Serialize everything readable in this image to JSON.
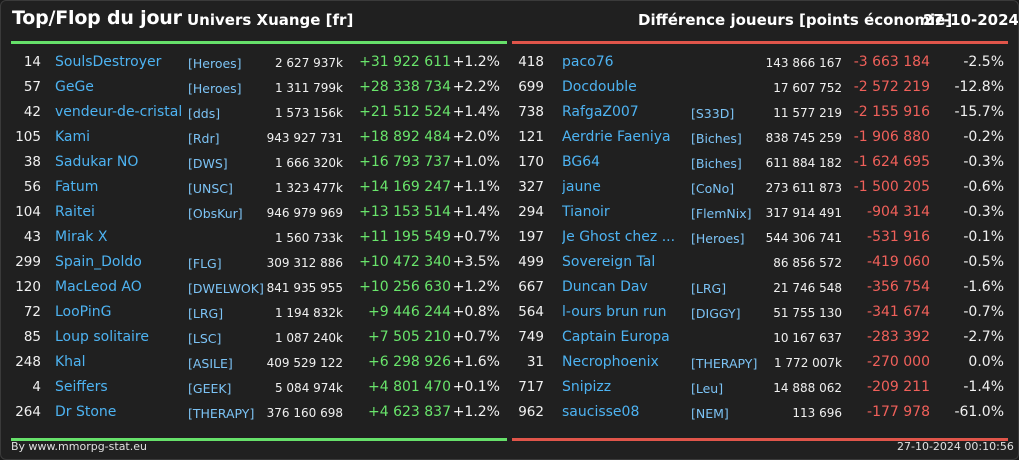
{
  "header": {
    "title": "Top/Flop du jour",
    "universe": "Univers Xuange [fr]",
    "metric": "Différence joueurs [points économie]",
    "date": "27-10-2024"
  },
  "colors": {
    "gain": "#69e56b",
    "loss": "#f0605a",
    "name": "#4db3f2",
    "top_border": "#66e06a",
    "flop_border": "#e0554a"
  },
  "top": [
    {
      "rank": "14",
      "name": "SoulsDestroyer",
      "guild": "[Heroes]",
      "total": "2 627 937k",
      "diff": "+31 922 611",
      "pct": "+1.2%"
    },
    {
      "rank": "57",
      "name": "GeGe",
      "guild": "[Heroes]",
      "total": "1 311 799k",
      "diff": "+28 338 734",
      "pct": "+2.2%"
    },
    {
      "rank": "42",
      "name": "vendeur-de-cristal",
      "guild": "[dds]",
      "total": "1 573 156k",
      "diff": "+21 512 524",
      "pct": "+1.4%"
    },
    {
      "rank": "105",
      "name": "Kami",
      "guild": "[Rdr]",
      "total": "943 927 731",
      "diff": "+18 892 484",
      "pct": "+2.0%"
    },
    {
      "rank": "38",
      "name": "Sadukar NO",
      "guild": "[DWS]",
      "total": "1 666 320k",
      "diff": "+16 793 737",
      "pct": "+1.0%"
    },
    {
      "rank": "56",
      "name": "Fatum",
      "guild": "[UNSC]",
      "total": "1 323 477k",
      "diff": "+14 169 247",
      "pct": "+1.1%"
    },
    {
      "rank": "104",
      "name": "Raitei",
      "guild": "[ObsKur]",
      "total": "946 979 969",
      "diff": "+13 153 514",
      "pct": "+1.4%"
    },
    {
      "rank": "43",
      "name": "Mirak X",
      "guild": "",
      "total": "1 560 733k",
      "diff": "+11 195 549",
      "pct": "+0.7%"
    },
    {
      "rank": "299",
      "name": "Spain_Doldo",
      "guild": "[FLG]",
      "total": "309 312 886",
      "diff": "+10 472 340",
      "pct": "+3.5%"
    },
    {
      "rank": "120",
      "name": "MacLeod AO",
      "guild": "[DWELWOK]",
      "total": "841 935 955",
      "diff": "+10 256 630",
      "pct": "+1.2%"
    },
    {
      "rank": "72",
      "name": "LooPinG",
      "guild": "[LRG]",
      "total": "1 194 832k",
      "diff": "+9 446 244",
      "pct": "+0.8%"
    },
    {
      "rank": "85",
      "name": "Loup solitaire",
      "guild": "[LSC]",
      "total": "1 087 240k",
      "diff": "+7 505 210",
      "pct": "+0.7%"
    },
    {
      "rank": "248",
      "name": "Khal",
      "guild": "[ASILE]",
      "total": "409 529 122",
      "diff": "+6 298 926",
      "pct": "+1.6%"
    },
    {
      "rank": "4",
      "name": "Seiffers",
      "guild": "[GEEK]",
      "total": "5 084 974k",
      "diff": "+4 801 470",
      "pct": "+0.1%"
    },
    {
      "rank": "264",
      "name": "Dr Stone",
      "guild": "[THERAPY]",
      "total": "376 160 698",
      "diff": "+4 623 837",
      "pct": "+1.2%"
    }
  ],
  "flop": [
    {
      "rank": "418",
      "name": "paco76",
      "guild": "",
      "total": "143 866 167",
      "diff": "-3 663 184",
      "pct": "-2.5%"
    },
    {
      "rank": "699",
      "name": "Docdouble",
      "guild": "",
      "total": "17 607 752",
      "diff": "-2 572 219",
      "pct": "-12.8%"
    },
    {
      "rank": "738",
      "name": "RafgaZ007",
      "guild": "[S33D]",
      "total": "11 577 219",
      "diff": "-2 155 916",
      "pct": "-15.7%"
    },
    {
      "rank": "121",
      "name": "Aerdrie Faeniya",
      "guild": "[Biches]",
      "total": "838 745 259",
      "diff": "-1 906 880",
      "pct": "-0.2%"
    },
    {
      "rank": "170",
      "name": "BG64",
      "guild": "[Biches]",
      "total": "611 884 182",
      "diff": "-1 624 695",
      "pct": "-0.3%"
    },
    {
      "rank": "327",
      "name": "jaune",
      "guild": "[CoNo]",
      "total": "273 611 873",
      "diff": "-1 500 205",
      "pct": "-0.6%"
    },
    {
      "rank": "294",
      "name": "Tianoir",
      "guild": "[FlemNix]",
      "total": "317 914 491",
      "diff": "-904 314",
      "pct": "-0.3%"
    },
    {
      "rank": "197",
      "name": "Je Ghost chez ...",
      "guild": "[Heroes]",
      "total": "544 306 741",
      "diff": "-531 916",
      "pct": "-0.1%"
    },
    {
      "rank": "499",
      "name": "Sovereign Tal",
      "guild": "",
      "total": "86 856 572",
      "diff": "-419 060",
      "pct": "-0.5%"
    },
    {
      "rank": "667",
      "name": "Duncan Dav",
      "guild": "[LRG]",
      "total": "21 746 548",
      "diff": "-356 754",
      "pct": "-1.6%"
    },
    {
      "rank": "564",
      "name": "l-ours brun run",
      "guild": "[DIGGY]",
      "total": "51 755 130",
      "diff": "-341 674",
      "pct": "-0.7%"
    },
    {
      "rank": "749",
      "name": "Captain Europa",
      "guild": "",
      "total": "10 167 637",
      "diff": "-283 392",
      "pct": "-2.7%"
    },
    {
      "rank": "31",
      "name": "Necrophoenix",
      "guild": "[THERAPY]",
      "total": "1 772 007k",
      "diff": "-270 000",
      "pct": "0.0%"
    },
    {
      "rank": "717",
      "name": "Snipizz",
      "guild": "[Leu]",
      "total": "14 888 062",
      "diff": "-209 211",
      "pct": "-1.4%"
    },
    {
      "rank": "962",
      "name": "saucisse08",
      "guild": "[NEM]",
      "total": "113 696",
      "diff": "-177 978",
      "pct": "-61.0%"
    }
  ],
  "footer": {
    "source": "By www.mmorpg-stat.eu",
    "timestamp": "27-10-2024 00:10:56"
  }
}
